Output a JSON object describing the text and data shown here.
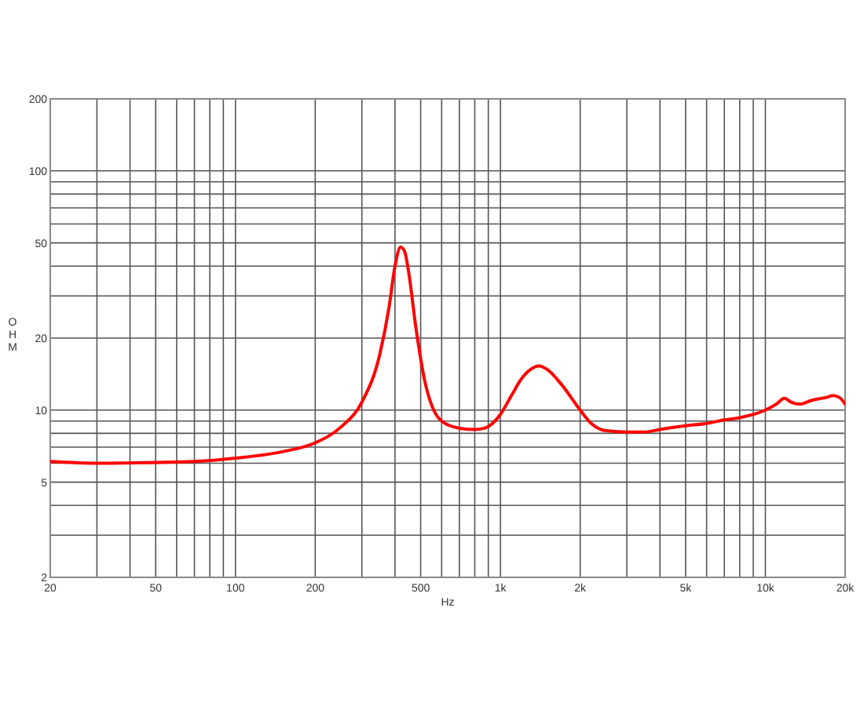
{
  "chart_data": {
    "type": "line",
    "xlabel": "Hz",
    "ylabel": "OHM",
    "log": "xy",
    "grid": true,
    "line_style": "solid",
    "xlim": [
      20,
      20000
    ],
    "ylim": [
      2,
      200
    ],
    "xticks": [
      20,
      {
        "value": 30,
        "label": null
      },
      {
        "value": 40,
        "label": null
      },
      50,
      {
        "value": 60,
        "label": null
      },
      {
        "value": 70,
        "label": null
      },
      {
        "value": 80,
        "label": null
      },
      {
        "value": 90,
        "label": null
      },
      100,
      200,
      {
        "value": 300,
        "label": null
      },
      {
        "value": 400,
        "label": null
      },
      500,
      {
        "value": 600,
        "label": null
      },
      {
        "value": 700,
        "label": null
      },
      {
        "value": 800,
        "label": null
      },
      {
        "value": 900,
        "label": null
      },
      {
        "value": 1000,
        "label": "1k"
      },
      {
        "value": 2000,
        "label": "2k"
      },
      {
        "value": 3000,
        "label": null
      },
      {
        "value": 4000,
        "label": null
      },
      {
        "value": 5000,
        "label": "5k"
      },
      {
        "value": 6000,
        "label": null
      },
      {
        "value": 7000,
        "label": null
      },
      {
        "value": 8000,
        "label": null
      },
      {
        "value": 9000,
        "label": null
      },
      {
        "value": 10000,
        "label": "10k"
      },
      {
        "value": 20000,
        "label": "20k"
      }
    ],
    "yticks": [
      2,
      {
        "value": 3,
        "label": null
      },
      {
        "value": 4,
        "label": null
      },
      5,
      {
        "value": 6,
        "label": null
      },
      {
        "value": 7,
        "label": null
      },
      {
        "value": 8,
        "label": null
      },
      {
        "value": 9,
        "label": null
      },
      10,
      20,
      {
        "value": 30,
        "label": null
      },
      {
        "value": 40,
        "label": null
      },
      50,
      {
        "value": 60,
        "label": null
      },
      {
        "value": 70,
        "label": null
      },
      {
        "value": 80,
        "label": null
      },
      {
        "value": 90,
        "label": null
      },
      100,
      200
    ],
    "x": [
      20,
      30,
      50,
      70,
      100,
      150,
      200,
      250,
      300,
      350,
      380,
      400,
      420,
      435,
      450,
      480,
      520,
      560,
      600,
      700,
      800,
      870,
      1000,
      1100,
      1200,
      1300,
      1400,
      1500,
      1700,
      2000,
      2200,
      2500,
      3000,
      3500,
      4000,
      5000,
      6000,
      7000,
      8000,
      10000,
      11000,
      11800,
      12500,
      13500,
      15000,
      17000,
      18000,
      19000,
      20000
    ],
    "series": [
      {
        "color": "#ff0000",
        "values": [
          6.1,
          6.0,
          6.05,
          6.1,
          6.3,
          6.7,
          7.3,
          8.5,
          10.8,
          17,
          27,
          40,
          48,
          46,
          38,
          22,
          13,
          10,
          9,
          8.4,
          8.3,
          8.4,
          9.6,
          11.5,
          13.5,
          14.8,
          15.3,
          14.8,
          12.8,
          10,
          8.8,
          8.2,
          8.1,
          8.1,
          8.3,
          8.6,
          8.8,
          9.1,
          9.3,
          10,
          10.6,
          11.2,
          10.8,
          10.6,
          11,
          11.3,
          11.5,
          11.3,
          10.6
        ]
      }
    ]
  }
}
